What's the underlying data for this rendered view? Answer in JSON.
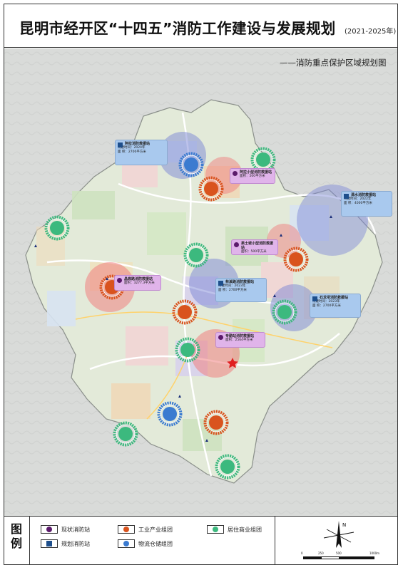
{
  "header": {
    "title": "昆明市经开区“十四五”消防工作建设与发展规划",
    "years": "(2021-2025年)",
    "subtitle": "——消防重点保护区域规划图"
  },
  "colors": {
    "planned_station": "#1e4f8c",
    "existing_station": "#5b1a6b",
    "industrial_ring": "#d9531e",
    "residential_ring": "#3cb97e",
    "logistics_ring": "#3b7bd0",
    "blue_zone": "#7b86d6",
    "red_zone": "#f08080",
    "map_bg": "#dfe1df",
    "district_fill": "#e4ecdb"
  },
  "stations": [
    {
      "name": "阿拉消防救援站",
      "l1": "待建时间：2024年",
      "l2": "面    积：2700平方米",
      "style": "blue",
      "icon": "planned-station-icon"
    },
    {
      "name": "阿拉小型消防救援站",
      "l1": "面积：500平方米",
      "l2": "",
      "style": "purple",
      "icon": "existing-station-icon"
    },
    {
      "name": "清水消防救援站",
      "l1": "待建时间：2022年",
      "l2": "面    积：4000平方米",
      "style": "blue",
      "icon": "planned-station-icon"
    },
    {
      "name": "果土坡小型消防救援站",
      "l1": "面积：500平方米",
      "l2": "",
      "style": "purple",
      "icon": "existing-station-icon"
    },
    {
      "name": "晶鼎路消防救援站",
      "l1": "面积：3277.3平方米",
      "l2": "",
      "style": "purple",
      "icon": "existing-station-icon"
    },
    {
      "name": "林溪路消防救援站",
      "l1": "待建时间：2023年",
      "l2": "面    积：2700平方米",
      "style": "blue",
      "icon": "planned-station-icon"
    },
    {
      "name": "石龙坝消防救援站",
      "l1": "待建时间：2023年",
      "l2": "面    积：2700平方米",
      "style": "blue",
      "icon": "planned-station-icon"
    },
    {
      "name": "专勤站消防救援站",
      "l1": "面积：2564平方米",
      "l2": "",
      "style": "purple",
      "icon": "existing-station-icon"
    }
  ],
  "legend": {
    "title": "图例",
    "items": [
      {
        "label": "现状消防站",
        "icon": "existing-station-icon"
      },
      {
        "label": "工业产业组团",
        "icon": "industrial-cluster-icon"
      },
      {
        "label": "居住商业组团",
        "icon": "residential-cluster-icon"
      },
      {
        "label": "规划消防站",
        "icon": "planned-station-icon"
      },
      {
        "label": "物流仓储组团",
        "icon": "logistics-cluster-icon"
      }
    ]
  },
  "scale": {
    "labels": [
      "0",
      "250",
      "500",
      "1000m"
    ]
  },
  "north": {
    "label": "N"
  }
}
